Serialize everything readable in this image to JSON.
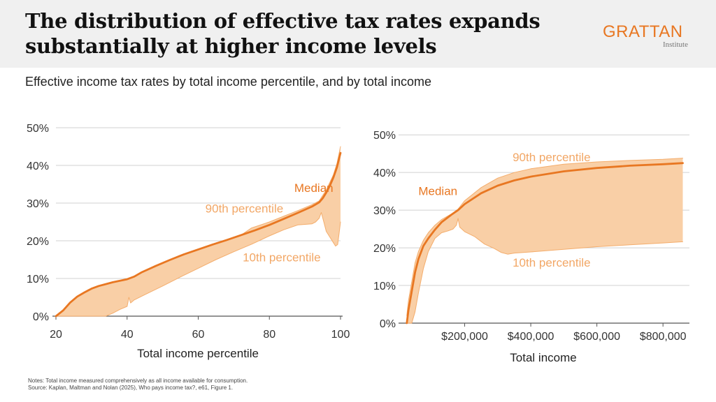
{
  "header": {
    "title": "The distribution of effective tax rates expands substantially at higher income levels",
    "logo_word": "GRATTAN",
    "logo_sub": "Institute"
  },
  "subtitle": "Effective income tax rates by total income percentile, and by total income",
  "notes": {
    "line1": "Notes: Total income measured comprehensively as all income available for consumption.",
    "line2": "Source: Kaplan, Maltman and Nolan (2025), Who pays income tax?, e61, Figure 1."
  },
  "colors": {
    "median": "#e87722",
    "band_fill": "#f9cfa6",
    "band_edge": "#f4ad6c",
    "band_label": "#f2a766",
    "grid": "#d0d0d0",
    "axis": "#555555"
  },
  "chart_data": [
    {
      "type": "area",
      "xlabel": "Total income percentile",
      "ylabel": "",
      "xlim": [
        20,
        100
      ],
      "ylim": [
        0,
        50
      ],
      "xticks": [
        {
          "v": 20,
          "label": "20"
        },
        {
          "v": 40,
          "label": "40"
        },
        {
          "v": 60,
          "label": "60"
        },
        {
          "v": 80,
          "label": "80"
        },
        {
          "v": 100,
          "label": "100"
        }
      ],
      "yticks": [
        {
          "v": 0,
          "label": "0%"
        },
        {
          "v": 10,
          "label": "10%"
        },
        {
          "v": 20,
          "label": "20%"
        },
        {
          "v": 30,
          "label": "30%"
        },
        {
          "v": 40,
          "label": "40%"
        },
        {
          "v": 50,
          "label": "50%"
        }
      ],
      "grid": true,
      "series": [
        {
          "name": "Median",
          "x": [
            20,
            22,
            24,
            26,
            28,
            30,
            32,
            34,
            36,
            38,
            40,
            42,
            44,
            48,
            52,
            56,
            60,
            64,
            68,
            72,
            76,
            80,
            84,
            88,
            92,
            94,
            95,
            96,
            97,
            98,
            99,
            99.5,
            100
          ],
          "y": [
            0,
            1.5,
            3.6,
            5.2,
            6.3,
            7.3,
            8.0,
            8.5,
            9.0,
            9.4,
            9.8,
            10.5,
            11.6,
            13.3,
            14.9,
            16.4,
            17.7,
            19.0,
            20.2,
            21.5,
            22.8,
            24.2,
            25.8,
            27.4,
            29.1,
            30.2,
            31.3,
            32.8,
            34.6,
            36.8,
            39.5,
            41.5,
            43.3
          ]
        },
        {
          "name": "90th percentile",
          "x": [
            20,
            22,
            24,
            26,
            28,
            30,
            32,
            34,
            36,
            38,
            40,
            42,
            44,
            48,
            52,
            56,
            60,
            64,
            68,
            72,
            75,
            80,
            84,
            88,
            92,
            94,
            96,
            98,
            99,
            100
          ],
          "y": [
            0,
            1.5,
            3.6,
            5.2,
            6.4,
            7.3,
            8.0,
            8.5,
            9.0,
            9.4,
            9.8,
            10.5,
            11.6,
            13.3,
            14.9,
            16.4,
            17.7,
            19.0,
            20.2,
            21.5,
            23.4,
            25.0,
            26.5,
            28.0,
            29.6,
            30.6,
            33.5,
            37.5,
            40.5,
            45.0
          ]
        },
        {
          "name": "10th percentile",
          "x": [
            20,
            23,
            26,
            28,
            30,
            32,
            34,
            36,
            38,
            40,
            40.5,
            41,
            42,
            45,
            50,
            55,
            60,
            65,
            70,
            75,
            80,
            84,
            88,
            92,
            93,
            94,
            94.6,
            95.3,
            96,
            97,
            98,
            98.6,
            99.2,
            99.6,
            100
          ],
          "y": [
            0,
            0,
            0,
            0,
            0,
            0,
            0,
            0.8,
            1.8,
            2.6,
            5.0,
            3.5,
            4.3,
            5.7,
            8.0,
            10.4,
            12.7,
            15.0,
            17.1,
            19.1,
            21.3,
            22.9,
            24.2,
            24.5,
            25.0,
            26.0,
            27.5,
            25.0,
            22.5,
            21.0,
            19.5,
            18.6,
            19.0,
            22.0,
            25.0
          ]
        }
      ],
      "labels": [
        {
          "text": "Median",
          "x": 87,
          "y": 33
        },
        {
          "text": "90th percentile",
          "x": 62,
          "y": 27.5
        },
        {
          "text": "10th percentile",
          "x": 72.5,
          "y": 14.5
        }
      ]
    },
    {
      "type": "area",
      "xlabel": "Total income",
      "ylabel": "",
      "xlim": [
        0,
        880000
      ],
      "ylim": [
        0,
        53
      ],
      "xticks": [
        {
          "v": 200000,
          "label": "$200,000"
        },
        {
          "v": 400000,
          "label": "$400,000"
        },
        {
          "v": 600000,
          "label": "$600,000"
        },
        {
          "v": 800000,
          "label": "$800,000"
        }
      ],
      "yticks": [
        {
          "v": 0,
          "label": "0%"
        },
        {
          "v": 10,
          "label": "10%"
        },
        {
          "v": 20,
          "label": "20%"
        },
        {
          "v": 30,
          "label": "30%"
        },
        {
          "v": 40,
          "label": "40%"
        },
        {
          "v": 50,
          "label": "50%"
        }
      ],
      "grid": true,
      "series": [
        {
          "name": "Median",
          "x": [
            25000,
            30000,
            40000,
            50000,
            60000,
            75000,
            90000,
            110000,
            130000,
            160000,
            180000,
            200000,
            250000,
            300000,
            350000,
            400000,
            500000,
            600000,
            700000,
            800000,
            860000
          ],
          "y": [
            0,
            3.5,
            8.5,
            13.5,
            17.0,
            20.5,
            22.5,
            24.8,
            26.8,
            28.8,
            30.0,
            31.6,
            34.5,
            36.5,
            37.9,
            38.9,
            40.3,
            41.2,
            41.8,
            42.2,
            42.5
          ]
        },
        {
          "name": "90th percentile",
          "x": [
            25000,
            30000,
            40000,
            50000,
            60000,
            75000,
            90000,
            110000,
            130000,
            160000,
            180000,
            200000,
            250000,
            300000,
            350000,
            400000,
            500000,
            600000,
            700000,
            800000,
            860000
          ],
          "y": [
            2.0,
            6.0,
            11.0,
            16.0,
            19.0,
            22.0,
            24.0,
            26.0,
            27.5,
            29.0,
            30.3,
            32.5,
            36.0,
            38.5,
            40.0,
            41.0,
            42.2,
            42.8,
            43.2,
            43.5,
            43.8
          ]
        },
        {
          "name": "10th percentile",
          "x": [
            25000,
            30000,
            40000,
            50000,
            60000,
            75000,
            90000,
            110000,
            130000,
            150000,
            165000,
            175000,
            180000,
            185000,
            200000,
            230000,
            260000,
            290000,
            310000,
            330000,
            350000,
            400000,
            500000,
            600000,
            700000,
            800000,
            860000
          ],
          "y": [
            0,
            0,
            0,
            3.0,
            8.0,
            14.5,
            19.0,
            22.5,
            24.0,
            24.5,
            25.0,
            26.0,
            27.8,
            25.5,
            24.3,
            23.0,
            21.0,
            19.8,
            18.8,
            18.3,
            18.6,
            18.9,
            19.6,
            20.3,
            20.8,
            21.3,
            21.6
          ]
        }
      ],
      "labels": [
        {
          "text": "Median",
          "x": 60000,
          "y": 34
        },
        {
          "text": "90th percentile",
          "x": 345000,
          "y": 43
        },
        {
          "text": "10th percentile",
          "x": 345000,
          "y": 15
        }
      ]
    }
  ]
}
